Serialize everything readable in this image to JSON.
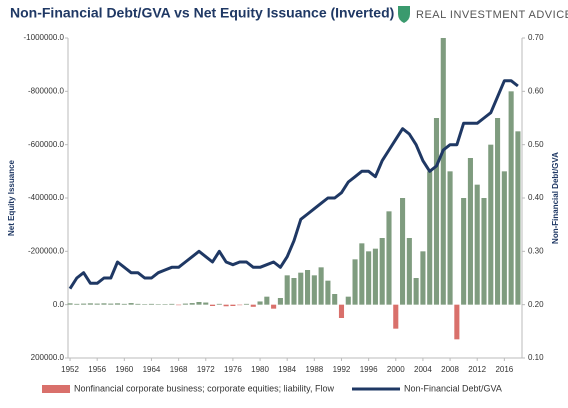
{
  "chart_data": {
    "type": "combo",
    "title": "Non-Financial Debt/GVA vs Net Equity Issuance (Inverted)",
    "logo": "REAL INVESTMENT ADVICE",
    "ylabel": "Net Equity Issuance",
    "y2label": "Non-Financial Debt/GVA",
    "x": [
      1952,
      1953,
      1954,
      1955,
      1956,
      1957,
      1958,
      1959,
      1960,
      1961,
      1962,
      1963,
      1964,
      1965,
      1966,
      1967,
      1968,
      1969,
      1970,
      1971,
      1972,
      1973,
      1974,
      1975,
      1976,
      1977,
      1978,
      1979,
      1980,
      1981,
      1982,
      1983,
      1984,
      1985,
      1986,
      1987,
      1988,
      1989,
      1990,
      1991,
      1992,
      1993,
      1994,
      1995,
      1996,
      1997,
      1998,
      1999,
      2000,
      2001,
      2002,
      2003,
      2004,
      2005,
      2006,
      2007,
      2008,
      2009,
      2010,
      2011,
      2012,
      2013,
      2014,
      2015,
      2016,
      2017,
      2018
    ],
    "xlim": [
      1951.7,
      2018.6
    ],
    "xticks": [
      1952,
      1956,
      1960,
      1964,
      1968,
      1972,
      1976,
      1980,
      1984,
      1988,
      1992,
      1996,
      2000,
      2004,
      2008,
      2012,
      2016
    ],
    "ylim": [
      200000,
      -1000000
    ],
    "yticks": [
      {
        "value": 200000,
        "label": "200000.0"
      },
      {
        "value": 0,
        "label": "0.0"
      },
      {
        "value": -200000,
        "label": "-200000.0"
      },
      {
        "value": -400000,
        "label": "-400000.0"
      },
      {
        "value": -600000,
        "label": "-600000.0"
      },
      {
        "value": -800000,
        "label": "-800000.0"
      },
      {
        "value": -1000000,
        "label": "-1000000.0"
      }
    ],
    "y2lim": [
      0.1,
      0.7
    ],
    "y2ticks": [
      {
        "value": 0.1,
        "label": "0.10"
      },
      {
        "value": 0.2,
        "label": "0.20"
      },
      {
        "value": 0.3,
        "label": "0.30"
      },
      {
        "value": 0.4,
        "label": "0.40"
      },
      {
        "value": 0.5,
        "label": "0.50"
      },
      {
        "value": 0.6,
        "label": "0.60"
      },
      {
        "value": 0.7,
        "label": "0.70"
      }
    ],
    "grid": false,
    "legend": "bottom",
    "series": [
      {
        "name": "Nonfinancial corporate business; corporate equities; liability, Flow",
        "type": "bar",
        "axis": "y",
        "color": "#d9706b",
        "negative_color": "#7f9c7f",
        "values": [
          -5000,
          -3000,
          -4000,
          -5000,
          -4000,
          -5000,
          -4000,
          -5000,
          -3000,
          -6000,
          -3000,
          -2000,
          -3000,
          -1000,
          -2000,
          -3000,
          2000,
          -4000,
          -6000,
          -10000,
          -8000,
          5000,
          -3000,
          6000,
          5000,
          2000,
          -3000,
          8000,
          -12000,
          -30000,
          15000,
          -25000,
          -110000,
          -100000,
          -120000,
          -130000,
          -110000,
          -140000,
          -90000,
          -40000,
          50000,
          -30000,
          -170000,
          -230000,
          -200000,
          -210000,
          -250000,
          -350000,
          90000,
          -400000,
          -250000,
          -100000,
          -200000,
          -500000,
          -700000,
          -1000000,
          -500000,
          130000,
          -400000,
          -550000,
          -450000,
          -400000,
          -600000,
          -700000,
          -500000,
          -800000,
          -650000
        ]
      },
      {
        "name": "Non-Financial Debt/GVA",
        "type": "line",
        "axis": "y2",
        "color": "#1f3864",
        "values": [
          0.23,
          0.25,
          0.26,
          0.24,
          0.24,
          0.25,
          0.25,
          0.28,
          0.27,
          0.26,
          0.26,
          0.25,
          0.25,
          0.26,
          0.265,
          0.27,
          0.27,
          0.28,
          0.29,
          0.3,
          0.29,
          0.28,
          0.3,
          0.28,
          0.275,
          0.28,
          0.28,
          0.27,
          0.27,
          0.275,
          0.28,
          0.27,
          0.29,
          0.32,
          0.36,
          0.37,
          0.38,
          0.39,
          0.4,
          0.4,
          0.41,
          0.43,
          0.44,
          0.45,
          0.45,
          0.44,
          0.47,
          0.49,
          0.51,
          0.53,
          0.52,
          0.5,
          0.47,
          0.45,
          0.46,
          0.49,
          0.5,
          0.5,
          0.54,
          0.54,
          0.54,
          0.55,
          0.56,
          0.59,
          0.62,
          0.62,
          0.61
        ]
      }
    ]
  }
}
